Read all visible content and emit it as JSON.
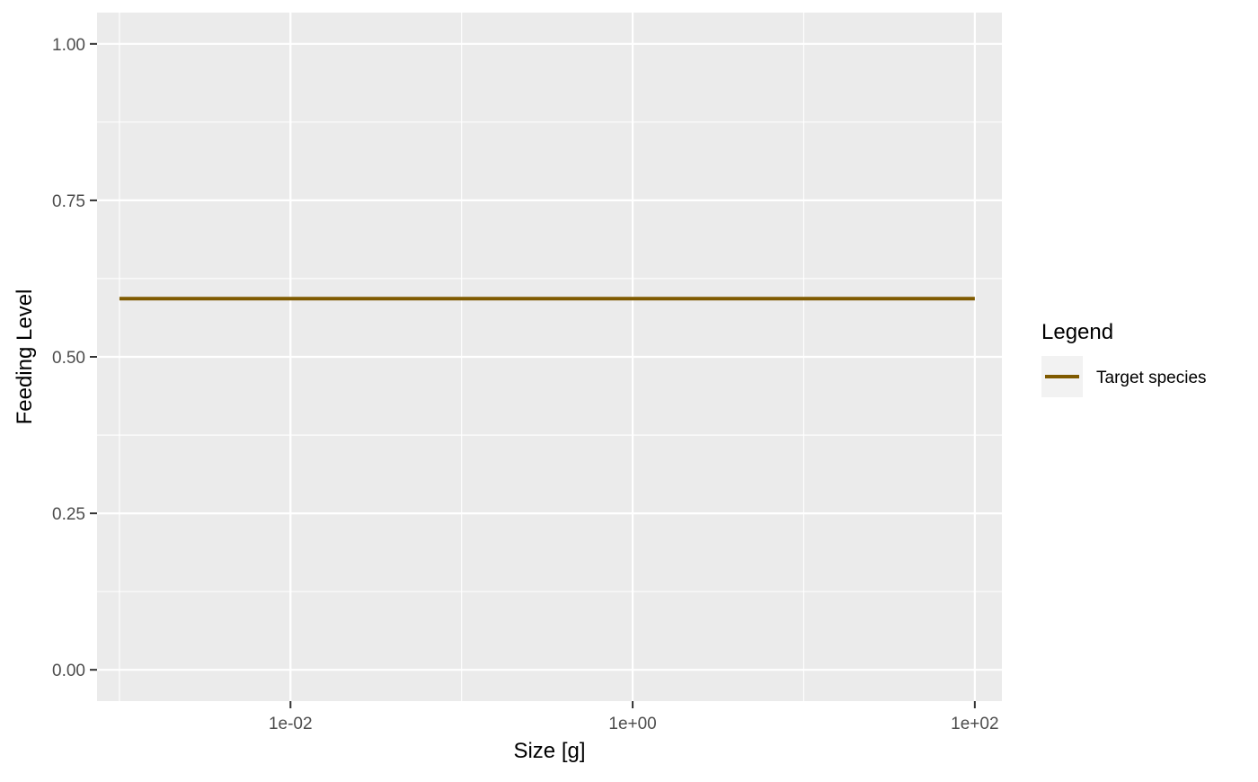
{
  "chart_data": {
    "type": "line",
    "x_scale": "log10",
    "xlabel": "Size [g]",
    "ylabel": "Feeding Level",
    "xlim": [
      0.00074,
      144
    ],
    "ylim": [
      -0.05,
      1.05
    ],
    "x_ticks": [
      {
        "value": 0.01,
        "label": "1e-02"
      },
      {
        "value": 1,
        "label": "1e+00"
      },
      {
        "value": 100,
        "label": "1e+02"
      }
    ],
    "x_minor_ticks": [
      0.001,
      0.1,
      10
    ],
    "y_ticks": [
      {
        "value": 0.0,
        "label": "0.00"
      },
      {
        "value": 0.25,
        "label": "0.25"
      },
      {
        "value": 0.5,
        "label": "0.50"
      },
      {
        "value": 0.75,
        "label": "0.75"
      },
      {
        "value": 1.0,
        "label": "1.00"
      }
    ],
    "y_minor_ticks": [
      0.125,
      0.375,
      0.625,
      0.875
    ],
    "grid": true,
    "panel_background": "#ebebeb",
    "grid_color": "#ffffff",
    "legend": {
      "title": "Legend",
      "placement": "right",
      "entries": [
        {
          "label": "Target species",
          "color": "#7f5a00"
        }
      ]
    },
    "series": [
      {
        "name": "Target species",
        "color": "#7f5a00",
        "x": [
          0.001,
          100
        ],
        "y": [
          0.593,
          0.593
        ]
      }
    ]
  }
}
